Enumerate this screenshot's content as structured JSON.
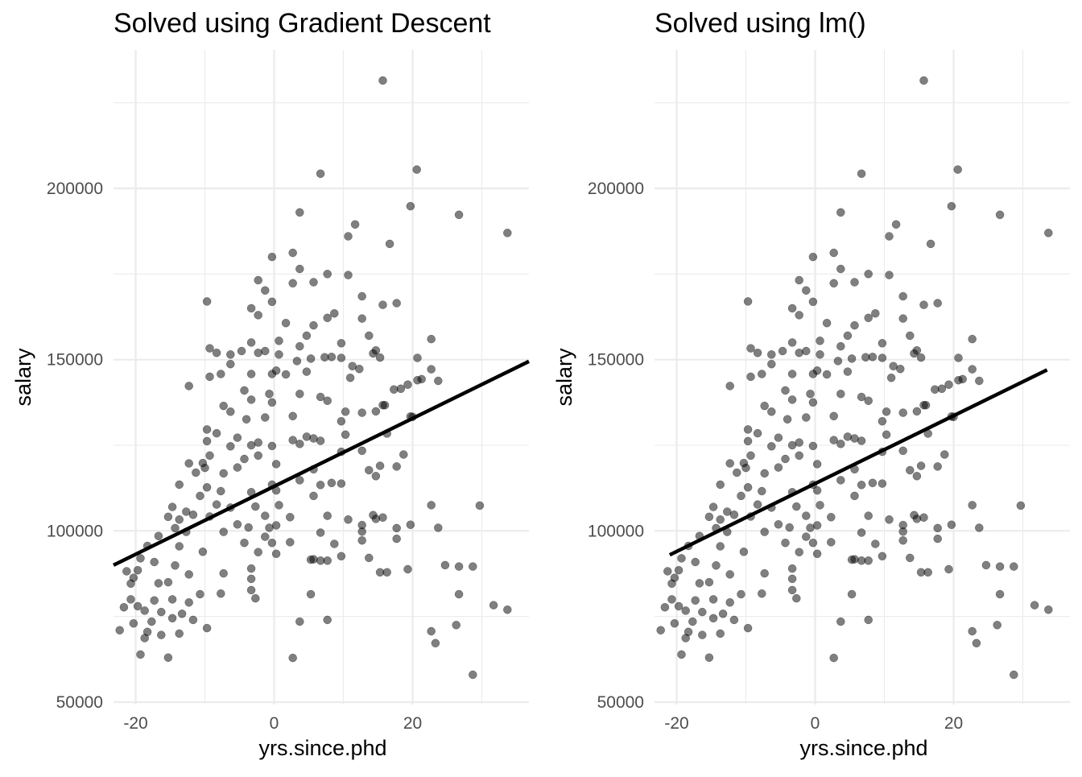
{
  "chart_data": [
    {
      "type": "scatter",
      "title": "Solved using Gradient Descent",
      "xlabel": "yrs.since.phd",
      "ylabel": "salary",
      "xlim": [
        -23.2,
        36.8
      ],
      "ylim": [
        50000,
        235000
      ],
      "x_ticks": [
        -20,
        0,
        20
      ],
      "x_tick_labels": [
        "-20",
        "0",
        "20"
      ],
      "y_ticks": [
        50000,
        100000,
        150000,
        200000
      ],
      "y_tick_labels": [
        "50000",
        "100000",
        "150000",
        "200000"
      ],
      "grid": true,
      "points_ref": "points",
      "fit_line": {
        "x": [
          -23.2,
          36.8
        ],
        "y": [
          90000,
          149500
        ]
      }
    },
    {
      "type": "scatter",
      "title": "Solved using lm()",
      "xlabel": "yrs.since.phd",
      "ylabel": "salary",
      "xlim": [
        -23.2,
        36.8
      ],
      "ylim": [
        50000,
        235000
      ],
      "x_ticks": [
        -20,
        0,
        20
      ],
      "x_tick_labels": [
        "-20",
        "0",
        "20"
      ],
      "y_ticks": [
        50000,
        100000,
        150000,
        200000
      ],
      "y_tick_labels": [
        "50000",
        "100000",
        "150000",
        "200000"
      ],
      "grid": true,
      "points_ref": "points",
      "fit_line": {
        "x": [
          -21,
          33.5
        ],
        "y": [
          93000,
          147000
        ]
      }
    }
  ],
  "points": [
    [
      15.7,
      231500
    ],
    [
      20.6,
      205500
    ],
    [
      6.7,
      204300
    ],
    [
      19.7,
      194800
    ],
    [
      26.7,
      192300
    ],
    [
      3.7,
      193000
    ],
    [
      11.7,
      189500
    ],
    [
      33.7,
      187000
    ],
    [
      10.7,
      186000
    ],
    [
      16.7,
      183800
    ],
    [
      2.7,
      181200
    ],
    [
      -0.3,
      180000
    ],
    [
      7.7,
      175000
    ],
    [
      10.7,
      174700
    ],
    [
      3.7,
      176500
    ],
    [
      -2.3,
      173200
    ],
    [
      5.7,
      172600
    ],
    [
      2.7,
      172300
    ],
    [
      12.7,
      168500
    ],
    [
      -1.3,
      170200
    ],
    [
      -0.3,
      166900
    ],
    [
      17.7,
      166500
    ],
    [
      15.7,
      166000
    ],
    [
      -9.7,
      167000
    ],
    [
      -3.3,
      165000
    ],
    [
      8.7,
      163500
    ],
    [
      -2.3,
      163000
    ],
    [
      7.7,
      162200
    ],
    [
      12.7,
      162000
    ],
    [
      1.7,
      160700
    ],
    [
      5.7,
      160000
    ],
    [
      4.7,
      157000
    ],
    [
      13.7,
      157000
    ],
    [
      22.7,
      156000
    ],
    [
      0.7,
      155500
    ],
    [
      -3.3,
      155000
    ],
    [
      9.7,
      154800
    ],
    [
      3.7,
      153900
    ],
    [
      14.7,
      152700
    ],
    [
      -9.3,
      153300
    ],
    [
      -4.7,
      152500
    ],
    [
      -8.3,
      152000
    ],
    [
      -1.3,
      152500
    ],
    [
      -6.3,
      151500
    ],
    [
      -2.3,
      152000
    ],
    [
      0.7,
      151500
    ],
    [
      14.3,
      151800
    ],
    [
      20.7,
      150500
    ],
    [
      15.3,
      150600
    ],
    [
      7.3,
      150700
    ],
    [
      5.3,
      150300
    ],
    [
      9.7,
      150500
    ],
    [
      8.3,
      150800
    ],
    [
      3.3,
      149600
    ],
    [
      -6.3,
      148700
    ],
    [
      11.3,
      148100
    ],
    [
      12.3,
      147300
    ],
    [
      0.3,
      146800
    ],
    [
      -0.3,
      145800
    ],
    [
      -3.3,
      145800
    ],
    [
      1.7,
      145700
    ],
    [
      4.7,
      146500
    ],
    [
      22.7,
      147200
    ],
    [
      -9.3,
      145000
    ],
    [
      -7.7,
      145800
    ],
    [
      -4.3,
      141000
    ],
    [
      20.7,
      144000
    ],
    [
      23.7,
      143800
    ],
    [
      19.3,
      142700
    ],
    [
      21.3,
      144300
    ],
    [
      11.0,
      144700
    ],
    [
      -0.7,
      140000
    ],
    [
      3.7,
      140000
    ],
    [
      18.3,
      141500
    ],
    [
      17.3,
      141300
    ],
    [
      6.7,
      139100
    ],
    [
      -0.3,
      137500
    ],
    [
      7.7,
      138000
    ],
    [
      -12.3,
      142300
    ],
    [
      -3.3,
      138300
    ],
    [
      -7.3,
      136500
    ],
    [
      15.7,
      136700
    ],
    [
      2.7,
      133500
    ],
    [
      10.3,
      134800
    ],
    [
      14.7,
      134900
    ],
    [
      -6.3,
      134800
    ],
    [
      19.7,
      133400
    ],
    [
      12.7,
      134500
    ],
    [
      -1.3,
      133100
    ],
    [
      20.0,
      133300
    ],
    [
      16.0,
      136700
    ],
    [
      -4.0,
      132600
    ],
    [
      -9.7,
      129600
    ],
    [
      9.7,
      132000
    ],
    [
      4.7,
      127500
    ],
    [
      -8.3,
      128500
    ],
    [
      -5.3,
      127200
    ],
    [
      6.7,
      126300
    ],
    [
      10.3,
      128100
    ],
    [
      2.7,
      126500
    ],
    [
      16.3,
      128400
    ],
    [
      5.7,
      127000
    ],
    [
      -2.3,
      125800
    ],
    [
      -9.7,
      126200
    ],
    [
      -0.3,
      124800
    ],
    [
      -3.3,
      125000
    ],
    [
      3.7,
      125400
    ],
    [
      -6.3,
      124700
    ],
    [
      12.7,
      123400
    ],
    [
      9.7,
      123100
    ],
    [
      -9.3,
      122000
    ],
    [
      -2.3,
      122000
    ],
    [
      18.7,
      122300
    ],
    [
      -4.3,
      121000
    ],
    [
      0.3,
      119500
    ],
    [
      -10.3,
      119800
    ],
    [
      -12.3,
      119700
    ],
    [
      -10.0,
      118400
    ],
    [
      13.7,
      117700
    ],
    [
      15.3,
      119000
    ],
    [
      -11.3,
      117000
    ],
    [
      17.7,
      118800
    ],
    [
      -5.3,
      118500
    ],
    [
      5.7,
      118000
    ],
    [
      14.7,
      116000
    ],
    [
      -7.3,
      116800
    ],
    [
      -0.3,
      113500
    ],
    [
      -13.7,
      113500
    ],
    [
      -9.7,
      112700
    ],
    [
      3.7,
      114800
    ],
    [
      6.7,
      113400
    ],
    [
      0.3,
      111800
    ],
    [
      -7.7,
      111600
    ],
    [
      -3.3,
      111300
    ],
    [
      8.3,
      114000
    ],
    [
      9.7,
      113800
    ],
    [
      -10.7,
      110200
    ],
    [
      5.7,
      110200
    ],
    [
      -14.7,
      107000
    ],
    [
      -8.3,
      107700
    ],
    [
      -12.7,
      105600
    ],
    [
      -6.3,
      106800
    ],
    [
      -2.7,
      107100
    ],
    [
      0.7,
      107500
    ],
    [
      -11.7,
      104700
    ],
    [
      -9.3,
      104200
    ],
    [
      -1.3,
      104400
    ],
    [
      7.7,
      104400
    ],
    [
      14.3,
      104600
    ],
    [
      15.7,
      103900
    ],
    [
      22.7,
      107500
    ],
    [
      29.7,
      107400
    ],
    [
      -15.3,
      104100
    ],
    [
      -13.7,
      103300
    ],
    [
      -5.3,
      101900
    ],
    [
      -3.7,
      101000
    ],
    [
      -0.7,
      100900
    ],
    [
      0.3,
      101600
    ],
    [
      2.3,
      104000
    ],
    [
      10.7,
      103300
    ],
    [
      12.7,
      101700
    ],
    [
      14.7,
      103500
    ],
    [
      19.7,
      101800
    ],
    [
      17.7,
      100800
    ],
    [
      -12.7,
      99700
    ],
    [
      -14.3,
      100800
    ],
    [
      -16.7,
      98500
    ],
    [
      -7.3,
      99700
    ],
    [
      -1.3,
      98300
    ],
    [
      6.7,
      99500
    ],
    [
      12.7,
      99800
    ],
    [
      -4.3,
      96500
    ],
    [
      -0.3,
      96500
    ],
    [
      2.3,
      96700
    ],
    [
      8.7,
      96200
    ],
    [
      12.7,
      97200
    ],
    [
      17.7,
      97700
    ],
    [
      23.7,
      100900
    ],
    [
      -18.3,
      95600
    ],
    [
      -13.7,
      95500
    ],
    [
      -10.3,
      93900
    ],
    [
      -2.3,
      93800
    ],
    [
      5.7,
      91700
    ],
    [
      7.7,
      91300
    ],
    [
      9.7,
      92600
    ],
    [
      13.7,
      92100
    ],
    [
      16.3,
      87900
    ],
    [
      -19.3,
      92000
    ],
    [
      -17.3,
      90900
    ],
    [
      -14.3,
      89900
    ],
    [
      -7.3,
      87600
    ],
    [
      -3.3,
      89000
    ],
    [
      0.3,
      93300
    ],
    [
      5.3,
      91600
    ],
    [
      6.7,
      91300
    ],
    [
      15.3,
      87900
    ],
    [
      19.3,
      88800
    ],
    [
      24.7,
      90000
    ],
    [
      26.7,
      89600
    ],
    [
      28.7,
      89600
    ],
    [
      -21.3,
      88200
    ],
    [
      -19.7,
      88500
    ],
    [
      -20.3,
      86300
    ],
    [
      -15.3,
      85000
    ],
    [
      -12.3,
      87300
    ],
    [
      -3.3,
      86000
    ],
    [
      -7.7,
      81700
    ],
    [
      -10.7,
      81500
    ],
    [
      -20.7,
      84600
    ],
    [
      -16.7,
      84700
    ],
    [
      -14.7,
      80000
    ],
    [
      -12.3,
      79100
    ],
    [
      -3.3,
      82700
    ],
    [
      -2.7,
      80300
    ],
    [
      5.3,
      81500
    ],
    [
      -17.3,
      79700
    ],
    [
      -19.7,
      78000
    ],
    [
      -18.7,
      76700
    ],
    [
      -16.3,
      76300
    ],
    [
      -21.7,
      77700
    ],
    [
      -20.3,
      73000
    ],
    [
      -17.7,
      73500
    ],
    [
      -14.7,
      74500
    ],
    [
      -11.7,
      74000
    ],
    [
      -9.7,
      71600
    ],
    [
      -18.3,
      70500
    ],
    [
      -22.3,
      71000
    ],
    [
      -13.7,
      70000
    ],
    [
      -18.7,
      68700
    ],
    [
      -16.3,
      69600
    ],
    [
      -19.3,
      63900
    ],
    [
      -15.3,
      63000
    ],
    [
      3.7,
      73500
    ],
    [
      7.7,
      74000
    ],
    [
      22.7,
      70700
    ],
    [
      23.3,
      67200
    ],
    [
      26.3,
      72500
    ],
    [
      26.7,
      81500
    ],
    [
      31.7,
      78300
    ],
    [
      33.7,
      77000
    ],
    [
      28.7,
      58000
    ],
    [
      2.7,
      62900
    ],
    [
      -13.3,
      75800
    ],
    [
      -20.7,
      80000
    ]
  ]
}
